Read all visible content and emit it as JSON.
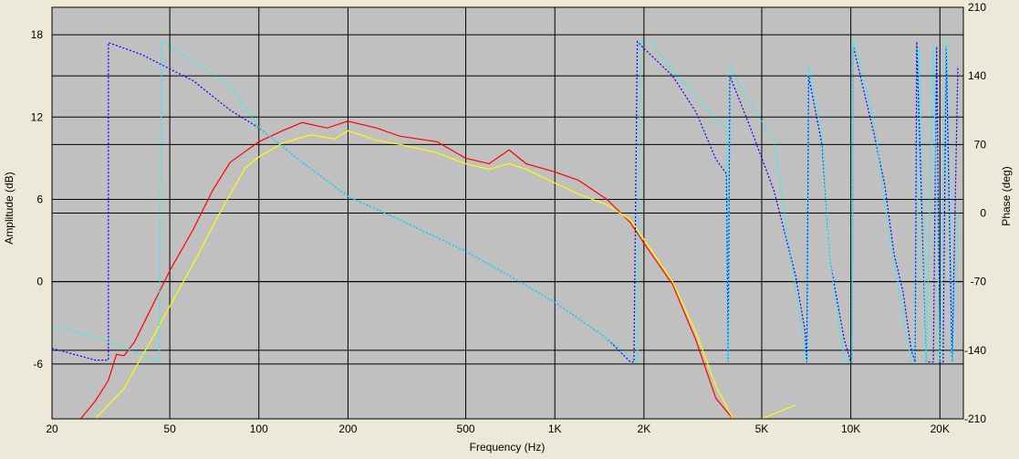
{
  "chart_data": {
    "type": "line",
    "xlabel": "Frequency (Hz)",
    "ylabel": "Amplitude (dB)",
    "y2label": "Phase (deg)",
    "x_scale": "log",
    "xlim": [
      20,
      24000
    ],
    "ylim": [
      -10,
      20
    ],
    "y2lim": [
      -210,
      210
    ],
    "grid": true,
    "x_ticks": [
      {
        "value": 20,
        "label": "20"
      },
      {
        "value": 50,
        "label": "50"
      },
      {
        "value": 100,
        "label": "100"
      },
      {
        "value": 200,
        "label": "200"
      },
      {
        "value": 500,
        "label": "500"
      },
      {
        "value": 1000,
        "label": "1K"
      },
      {
        "value": 2000,
        "label": "2K"
      },
      {
        "value": 5000,
        "label": "5K"
      },
      {
        "value": 10000,
        "label": "10K"
      },
      {
        "value": 20000,
        "label": "20K"
      }
    ],
    "y_ticks": [
      {
        "value": 18,
        "label": "18"
      },
      {
        "value": 12,
        "label": "12"
      },
      {
        "value": 6,
        "label": "6"
      },
      {
        "value": 0,
        "label": "0"
      },
      {
        "value": -6,
        "label": "-6"
      }
    ],
    "y2_ticks": [
      {
        "value": 210,
        "label": "210"
      },
      {
        "value": 140,
        "label": "140"
      },
      {
        "value": 70,
        "label": "70"
      },
      {
        "value": 0,
        "label": "0"
      },
      {
        "value": -70,
        "label": "-70"
      },
      {
        "value": -140,
        "label": "-140"
      },
      {
        "value": -210,
        "label": "-210"
      }
    ],
    "series": [
      {
        "axis": "left",
        "color": "#ff0000",
        "style": "solid",
        "points": [
          [
            25,
            -10
          ],
          [
            28,
            -8.7
          ],
          [
            31,
            -7.2
          ],
          [
            33,
            -5.3
          ],
          [
            35,
            -5.4
          ],
          [
            38,
            -4.4
          ],
          [
            42,
            -2.5
          ],
          [
            50,
            0.8
          ],
          [
            60,
            3.8
          ],
          [
            70,
            6.7
          ],
          [
            80,
            8.7
          ],
          [
            100,
            10.2
          ],
          [
            120,
            11
          ],
          [
            140,
            11.6
          ],
          [
            170,
            11.2
          ],
          [
            200,
            11.7
          ],
          [
            250,
            11.2
          ],
          [
            300,
            10.6
          ],
          [
            400,
            10.2
          ],
          [
            500,
            9
          ],
          [
            600,
            8.6
          ],
          [
            700,
            9.6
          ],
          [
            800,
            8.6
          ],
          [
            1000,
            8
          ],
          [
            1200,
            7.4
          ],
          [
            1500,
            6
          ],
          [
            1800,
            4.3
          ],
          [
            2000,
            2.8
          ],
          [
            2500,
            -0.2
          ],
          [
            3000,
            -4.3
          ],
          [
            3500,
            -8.5
          ],
          [
            4000,
            -10
          ]
        ]
      },
      {
        "axis": "left",
        "color": "#ffff00",
        "style": "solid",
        "points": [
          [
            28,
            -10
          ],
          [
            35,
            -7.8
          ],
          [
            45,
            -3.6
          ],
          [
            60,
            1.3
          ],
          [
            75,
            5.3
          ],
          [
            90,
            8.3
          ],
          [
            100,
            9.1
          ],
          [
            120,
            10.1
          ],
          [
            150,
            10.7
          ],
          [
            180,
            10.4
          ],
          [
            200,
            11
          ],
          [
            250,
            10.3
          ],
          [
            300,
            10
          ],
          [
            400,
            9.4
          ],
          [
            500,
            8.6
          ],
          [
            600,
            8.2
          ],
          [
            700,
            8.6
          ],
          [
            800,
            8.2
          ],
          [
            1000,
            7.2
          ],
          [
            1200,
            6.4
          ],
          [
            1500,
            5.6
          ],
          [
            1800,
            4.5
          ],
          [
            2000,
            3.1
          ],
          [
            2500,
            0
          ],
          [
            3000,
            -3.7
          ],
          [
            3500,
            -7.6
          ],
          [
            4000,
            -10
          ],
          [
            5000,
            -10
          ],
          [
            6500,
            -9
          ]
        ]
      },
      {
        "axis": "right",
        "color": "#0000ff",
        "style": "dashed",
        "points": [
          [
            20,
            -138
          ],
          [
            28,
            -150
          ],
          [
            31,
            -150
          ],
          [
            31,
            174
          ],
          [
            40,
            162
          ],
          [
            60,
            135
          ],
          [
            80,
            105
          ],
          [
            100,
            87
          ],
          [
            140,
            52
          ],
          [
            200,
            17
          ],
          [
            300,
            -7
          ],
          [
            500,
            -39
          ],
          [
            700,
            -64
          ],
          [
            1000,
            -91
          ],
          [
            1500,
            -128
          ],
          [
            1800,
            -152
          ],
          [
            1850,
            -152
          ],
          [
            1900,
            175
          ],
          [
            2000,
            168
          ],
          [
            2500,
            140
          ],
          [
            3000,
            103
          ],
          [
            3500,
            55
          ],
          [
            3800,
            40
          ],
          [
            3850,
            -152
          ],
          [
            3900,
            140
          ],
          [
            4500,
            93
          ],
          [
            5500,
            23
          ],
          [
            6500,
            -63
          ],
          [
            7000,
            -120
          ],
          [
            7100,
            -152
          ],
          [
            7200,
            140
          ],
          [
            8000,
            69
          ],
          [
            8500,
            -48
          ],
          [
            9500,
            -129
          ],
          [
            10000,
            -152
          ],
          [
            10100,
            -152
          ],
          [
            10200,
            170
          ],
          [
            12000,
            80
          ],
          [
            13000,
            30
          ],
          [
            14000,
            -42
          ],
          [
            15000,
            -80
          ],
          [
            16000,
            -140
          ],
          [
            16500,
            -152
          ],
          [
            16700,
            175
          ],
          [
            18000,
            -152
          ],
          [
            19000,
            -152
          ],
          [
            19500,
            170
          ],
          [
            20000,
            -152
          ],
          [
            20500,
            -152
          ],
          [
            21000,
            170
          ],
          [
            22000,
            -152
          ],
          [
            23000,
            150
          ]
        ]
      },
      {
        "axis": "right",
        "color": "#00ffff",
        "style": "dashed",
        "points": [
          [
            20,
            -115
          ],
          [
            30,
            -129
          ],
          [
            46,
            -152
          ],
          [
            47,
            176
          ],
          [
            60,
            155
          ],
          [
            80,
            130
          ],
          [
            100,
            87
          ],
          [
            140,
            52
          ],
          [
            200,
            17
          ],
          [
            300,
            -7
          ],
          [
            500,
            -39
          ],
          [
            700,
            -64
          ],
          [
            1000,
            -91
          ],
          [
            1500,
            -128
          ],
          [
            1900,
            -152
          ],
          [
            1950,
            176
          ],
          [
            2100,
            175
          ],
          [
            2500,
            146
          ],
          [
            3000,
            120
          ],
          [
            3500,
            95
          ],
          [
            3800,
            88
          ],
          [
            3850,
            -152
          ],
          [
            3900,
            150
          ],
          [
            4500,
            115
          ],
          [
            5500,
            75
          ],
          [
            6500,
            -78
          ],
          [
            7100,
            -152
          ],
          [
            7200,
            150
          ],
          [
            8000,
            80
          ],
          [
            8500,
            -48
          ],
          [
            9500,
            -150
          ],
          [
            10000,
            -152
          ],
          [
            10100,
            -152
          ],
          [
            10200,
            177
          ],
          [
            12000,
            95
          ],
          [
            13000,
            10
          ],
          [
            14000,
            -48
          ],
          [
            16000,
            -152
          ],
          [
            16500,
            -152
          ],
          [
            17000,
            170
          ],
          [
            18000,
            -152
          ],
          [
            19000,
            170
          ],
          [
            20000,
            -152
          ],
          [
            21000,
            176
          ],
          [
            22000,
            -152
          ],
          [
            23000,
            0
          ]
        ]
      }
    ]
  }
}
